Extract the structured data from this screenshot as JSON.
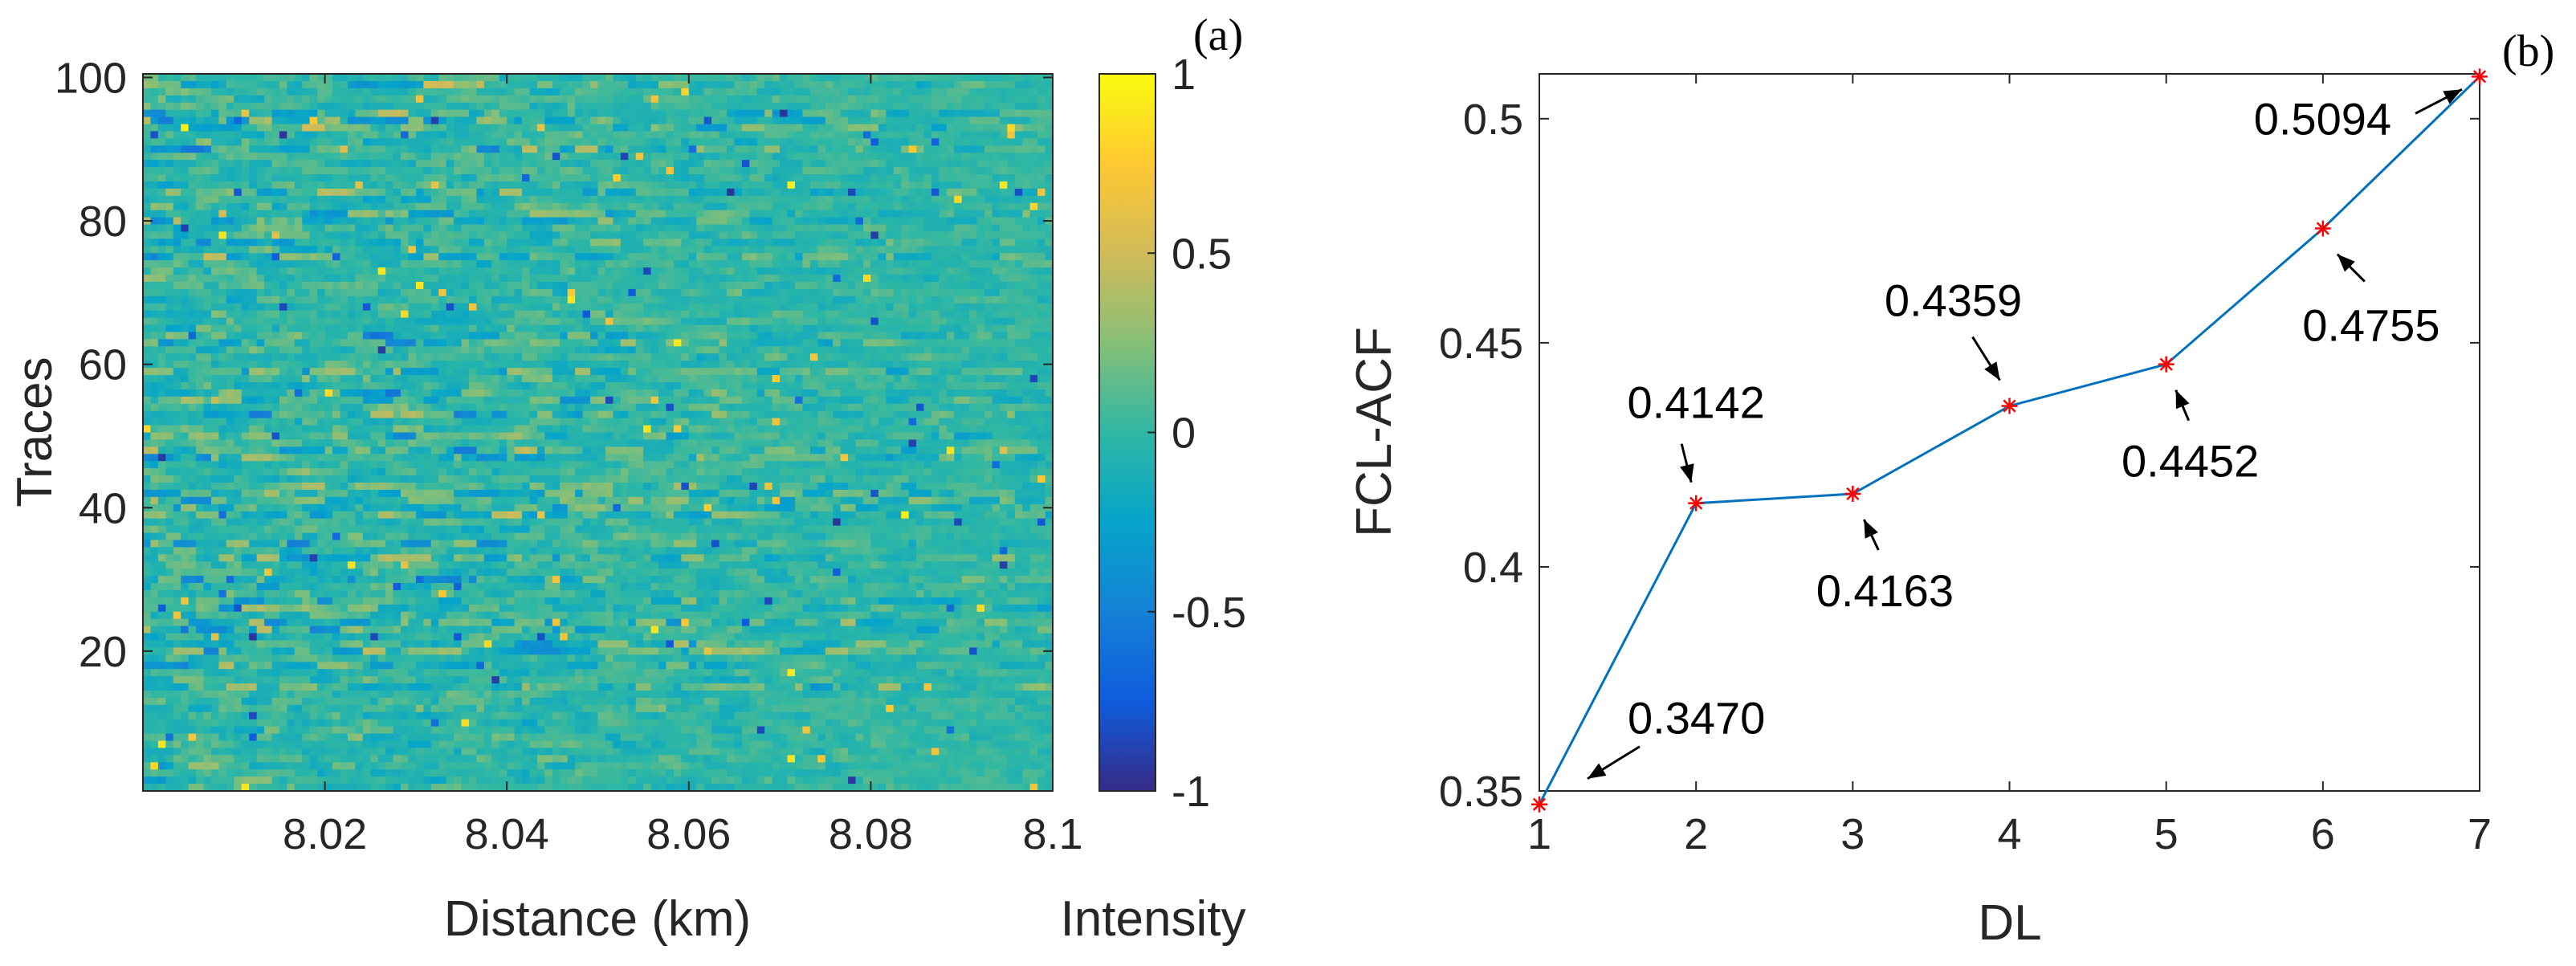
{
  "chart_data": [
    {
      "type": "heatmap",
      "panel_label": "(a)",
      "xlabel": "Distance (km)",
      "ylabel": "Traces",
      "xlim": [
        8.0,
        8.1
      ],
      "ylim": [
        0.5,
        100.5
      ],
      "x_ticks": [
        8.02,
        8.04,
        8.06,
        8.08,
        8.1
      ],
      "x_tick_labels": [
        "8.02",
        "8.04",
        "8.06",
        "8.08",
        "8.1"
      ],
      "y_ticks": [
        20,
        40,
        60,
        80,
        100
      ],
      "y_tick_labels": [
        "20",
        "40",
        "60",
        "80",
        "100"
      ],
      "n_rows": 100,
      "n_cols": 120,
      "value_range": [
        -1,
        1
      ],
      "colormap": "parula",
      "colorbar_label": "Intensity",
      "colorbar_ticks": [
        -1,
        -0.5,
        0,
        0.5,
        1
      ],
      "colorbar_tick_labels": [
        "-1",
        "-0.5",
        "0",
        "0.5",
        "1"
      ],
      "colorbar_colors": [
        "#352a87",
        "#0f5cdd",
        "#1481d6",
        "#06a4ca",
        "#2eb7a4",
        "#87bf77",
        "#d1bb59",
        "#fec832",
        "#f9fb0e"
      ],
      "grid": false
    },
    {
      "type": "line",
      "panel_label": "(b)",
      "xlabel": "DL",
      "ylabel": "FCL-ACF",
      "xlim": [
        1,
        7
      ],
      "ylim": [
        0.35,
        0.51
      ],
      "x": [
        1,
        2,
        3,
        4,
        5,
        6,
        7
      ],
      "x_tick_labels": [
        "1",
        "2",
        "3",
        "4",
        "5",
        "6",
        "7"
      ],
      "y_ticks": [
        0.35,
        0.4,
        0.45,
        0.5
      ],
      "y_tick_labels": [
        "0.35",
        "0.4",
        "0.45",
        "0.5"
      ],
      "series": [
        {
          "name": "FCL-ACF",
          "values": [
            0.347,
            0.4142,
            0.4163,
            0.4359,
            0.4452,
            0.4755,
            0.5094
          ],
          "line_color": "#0072bd",
          "marker": "*",
          "marker_color": "#ff0000"
        }
      ],
      "annotations": [
        {
          "text": "0.3470",
          "point": 1
        },
        {
          "text": "0.4142",
          "point": 2
        },
        {
          "text": "0.4163",
          "point": 3
        },
        {
          "text": "0.4359",
          "point": 4
        },
        {
          "text": "0.4452",
          "point": 5
        },
        {
          "text": "0.4755",
          "point": 6
        },
        {
          "text": "0.5094",
          "point": 7
        }
      ],
      "grid": false
    }
  ]
}
